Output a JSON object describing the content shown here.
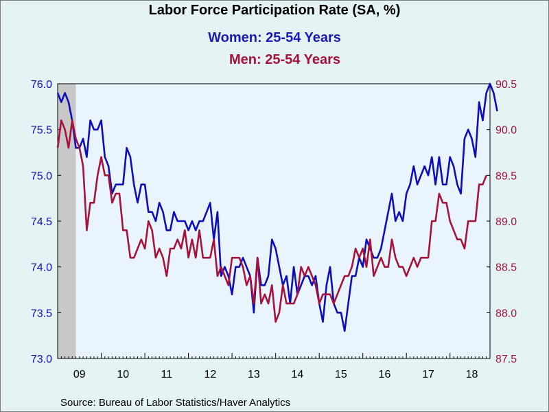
{
  "title": "Labor Force Participation Rate (SA, %)",
  "colors": {
    "women": "#0d0dbb",
    "men": "#a6123a",
    "plot_bg": "#eaf4fd",
    "recession": "#c8c8c8"
  },
  "source": "Source:  Bureau of Labor Statistics/Haver Analytics",
  "chart_data": {
    "type": "line",
    "title": "Labor Force Participation Rate (SA, %)",
    "x_ticks": [
      "09",
      "10",
      "11",
      "12",
      "13",
      "14",
      "15",
      "16",
      "17",
      "18"
    ],
    "x_range": [
      2009.0,
      2018.917
    ],
    "left_axis": {
      "ylim": [
        73.0,
        76.0
      ],
      "ticks": [
        "73.0",
        "73.5",
        "74.0",
        "74.5",
        "75.0",
        "75.5",
        "76.0"
      ]
    },
    "right_axis": {
      "ylim": [
        87.5,
        90.5
      ],
      "ticks": [
        "87.5",
        "88.0",
        "88.5",
        "89.0",
        "89.5",
        "90.0",
        "90.5"
      ]
    },
    "shaded_regions": [
      [
        2009.0,
        2009.417
      ]
    ],
    "series": [
      {
        "name": "Women: 25-54 Years",
        "axis": "left",
        "values": [
          75.9,
          75.8,
          75.9,
          75.8,
          75.6,
          75.3,
          75.3,
          75.4,
          75.2,
          75.6,
          75.5,
          75.5,
          75.6,
          75.2,
          75.1,
          74.8,
          74.9,
          74.9,
          74.9,
          75.3,
          75.2,
          74.9,
          74.7,
          74.9,
          74.9,
          74.6,
          74.6,
          74.5,
          74.7,
          74.6,
          74.4,
          74.4,
          74.6,
          74.5,
          74.5,
          74.5,
          74.4,
          74.5,
          74.4,
          74.5,
          74.5,
          74.6,
          74.7,
          74.3,
          74.6,
          73.9,
          74.0,
          73.9,
          73.7,
          74.0,
          74.0,
          74.1,
          74.0,
          73.9,
          73.5,
          74.1,
          73.8,
          73.8,
          73.9,
          74.3,
          74.2,
          74.0,
          73.8,
          73.9,
          73.6,
          74.0,
          73.7,
          73.8,
          73.9,
          73.9,
          73.8,
          73.9,
          73.6,
          73.4,
          73.8,
          74.0,
          73.6,
          73.5,
          73.5,
          73.3,
          73.6,
          73.9,
          73.9,
          74.1,
          74.0,
          74.3,
          74.2,
          74.1,
          74.1,
          74.2,
          74.4,
          74.6,
          74.8,
          74.5,
          74.6,
          74.5,
          74.8,
          74.9,
          75.1,
          74.9,
          75.0,
          75.1,
          75.0,
          75.2,
          74.9,
          75.2,
          74.9,
          74.9,
          75.2,
          75.1,
          74.9,
          74.8,
          75.4,
          75.5,
          75.4,
          75.2,
          75.8,
          75.6,
          75.9,
          76.0,
          75.9,
          75.7
        ]
      },
      {
        "name": "Men: 25-54 Years",
        "axis": "right",
        "values": [
          89.8,
          90.1,
          90.0,
          89.8,
          90.1,
          89.9,
          89.8,
          89.6,
          88.9,
          89.2,
          89.2,
          89.5,
          89.7,
          89.5,
          89.5,
          89.2,
          89.3,
          89.3,
          88.9,
          88.9,
          88.6,
          88.6,
          88.7,
          88.8,
          88.7,
          89.0,
          88.9,
          88.6,
          88.7,
          88.6,
          88.4,
          88.7,
          88.7,
          88.8,
          88.7,
          88.9,
          88.6,
          88.8,
          88.6,
          88.9,
          88.6,
          88.6,
          88.6,
          88.8,
          88.4,
          88.5,
          88.4,
          88.3,
          88.6,
          88.6,
          88.6,
          88.5,
          88.3,
          88.4,
          88.1,
          88.6,
          88.1,
          88.2,
          88.1,
          88.3,
          87.9,
          88.0,
          88.3,
          88.1,
          88.1,
          88.1,
          88.2,
          88.5,
          88.4,
          88.5,
          88.4,
          88.3,
          88.1,
          88.2,
          88.2,
          88.2,
          88.1,
          88.2,
          88.3,
          88.4,
          88.4,
          88.5,
          88.7,
          88.6,
          88.7,
          88.5,
          88.8,
          88.4,
          88.5,
          88.6,
          88.5,
          88.5,
          88.8,
          88.6,
          88.5,
          88.5,
          88.4,
          88.5,
          88.6,
          88.5,
          88.6,
          88.6,
          88.6,
          89.0,
          89.0,
          89.3,
          89.2,
          89.2,
          89.0,
          88.9,
          88.8,
          88.8,
          88.7,
          89.0,
          89.0,
          89.0,
          89.4,
          89.4,
          89.5
        ]
      }
    ]
  }
}
